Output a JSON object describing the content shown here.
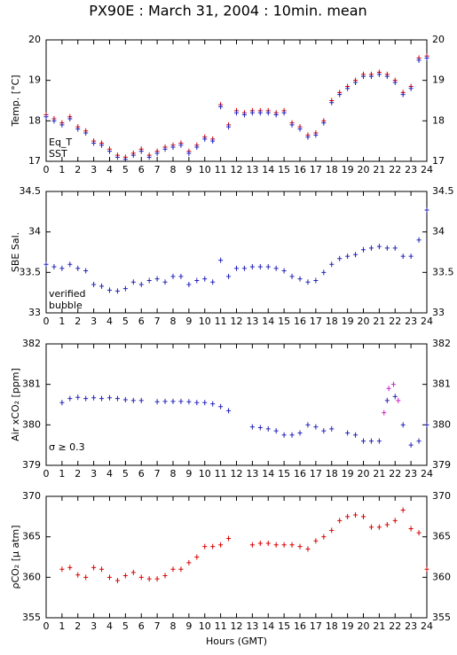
{
  "chart_data": [
    {
      "type": "scatter",
      "title": "PX90E : March 31, 2004 : 10min. mean",
      "ylabel": "Temp. [°C]",
      "xlim": [
        0,
        24
      ],
      "xticks": [
        0,
        1,
        2,
        3,
        4,
        5,
        6,
        7,
        8,
        9,
        10,
        11,
        12,
        13,
        14,
        15,
        16,
        17,
        18,
        19,
        20,
        21,
        22,
        23,
        24
      ],
      "ylim": [
        17,
        20
      ],
      "yticks": [
        17,
        18,
        19,
        20
      ],
      "series": [
        {
          "name": "Eq_T",
          "color": "#dd0000",
          "x": [
            0,
            0.5,
            1,
            1.5,
            2,
            2.5,
            3,
            3.5,
            4,
            4.5,
            5,
            5.5,
            6,
            6.5,
            7,
            7.5,
            8,
            8.5,
            9,
            9.5,
            10,
            10.5,
            11,
            11.5,
            12,
            12.5,
            13,
            13.5,
            14,
            14.5,
            15,
            15.5,
            16,
            16.5,
            17,
            17.5,
            18,
            18.5,
            19,
            19.5,
            20,
            20.5,
            21,
            21.5,
            22,
            22.5,
            23,
            23.5,
            24
          ],
          "values": [
            18.15,
            18.05,
            17.95,
            18.1,
            17.85,
            17.75,
            17.5,
            17.45,
            17.3,
            17.15,
            17.1,
            17.2,
            17.3,
            17.15,
            17.25,
            17.35,
            17.4,
            17.45,
            17.25,
            17.4,
            17.6,
            17.55,
            18.4,
            17.9,
            18.25,
            18.2,
            18.25,
            18.25,
            18.25,
            18.2,
            18.25,
            17.95,
            17.85,
            17.65,
            17.7,
            18.0,
            18.5,
            18.7,
            18.85,
            19.0,
            19.15,
            19.15,
            19.2,
            19.15,
            19.0,
            18.7,
            18.85,
            19.55,
            19.6
          ]
        },
        {
          "name": "SST",
          "color": "#2222bb",
          "x": [
            0,
            0.5,
            1,
            1.5,
            2,
            2.5,
            3,
            3.5,
            4,
            4.5,
            5,
            5.5,
            6,
            6.5,
            7,
            7.5,
            8,
            8.5,
            9,
            9.5,
            10,
            10.5,
            11,
            11.5,
            12,
            12.5,
            13,
            13.5,
            14,
            14.5,
            15,
            15.5,
            16,
            16.5,
            17,
            17.5,
            18,
            18.5,
            19,
            19.5,
            20,
            20.5,
            21,
            21.5,
            22,
            22.5,
            23,
            23.5,
            24
          ],
          "values": [
            18.1,
            18.0,
            17.9,
            18.05,
            17.8,
            17.7,
            17.45,
            17.4,
            17.25,
            17.1,
            17.05,
            17.15,
            17.25,
            17.1,
            17.2,
            17.3,
            17.35,
            17.4,
            17.2,
            17.35,
            17.55,
            17.5,
            18.35,
            17.85,
            18.2,
            18.15,
            18.2,
            18.2,
            18.2,
            18.15,
            18.2,
            17.9,
            17.8,
            17.6,
            17.65,
            17.95,
            18.45,
            18.65,
            18.8,
            18.95,
            19.1,
            19.1,
            19.15,
            19.1,
            18.95,
            18.65,
            18.8,
            19.5,
            19.55
          ]
        }
      ]
    },
    {
      "type": "scatter",
      "ylabel": "SBE Sal.",
      "xlim": [
        0,
        24
      ],
      "xticks": [
        0,
        1,
        2,
        3,
        4,
        5,
        6,
        7,
        8,
        9,
        10,
        11,
        12,
        13,
        14,
        15,
        16,
        17,
        18,
        19,
        20,
        21,
        22,
        23,
        24
      ],
      "ylim": [
        33,
        34.5
      ],
      "yticks": [
        33,
        33.5,
        34,
        34.5
      ],
      "series": [
        {
          "name": "verified",
          "color": "#2222bb",
          "x": [
            0,
            0.5,
            1,
            1.5,
            2,
            2.5,
            3,
            3.5,
            4,
            4.5,
            5,
            5.5,
            6,
            6.5,
            7,
            7.5,
            8,
            8.5,
            9,
            9.5,
            10,
            10.5,
            11,
            11.5,
            12,
            12.5,
            13,
            13.5,
            14,
            14.5,
            15,
            15.5,
            16,
            16.5,
            17,
            17.5,
            18,
            18.5,
            19,
            19.5,
            20,
            20.5,
            21,
            21.5,
            22,
            22.5,
            23,
            23.5,
            24
          ],
          "values": [
            33.6,
            33.57,
            33.55,
            33.6,
            33.55,
            33.52,
            33.35,
            33.33,
            33.28,
            33.27,
            33.3,
            33.38,
            33.35,
            33.4,
            33.42,
            33.38,
            33.45,
            33.45,
            33.35,
            33.4,
            33.42,
            33.38,
            33.65,
            33.45,
            33.55,
            33.55,
            33.57,
            33.57,
            33.57,
            33.55,
            33.52,
            33.45,
            33.42,
            33.38,
            33.4,
            33.5,
            33.6,
            33.67,
            33.7,
            33.72,
            33.78,
            33.8,
            33.82,
            33.8,
            33.8,
            33.7,
            33.7,
            33.9,
            34.27
          ]
        },
        {
          "name": "bubble",
          "color": "#cc22cc",
          "x": [],
          "values": []
        }
      ]
    },
    {
      "type": "scatter",
      "ylabel": "Air xCO₂ [ppm]",
      "annotation": "σ ≥ 0.3",
      "annotation_color": "#cc22cc",
      "xlim": [
        0,
        24
      ],
      "xticks": [
        0,
        1,
        2,
        3,
        4,
        5,
        6,
        7,
        8,
        9,
        10,
        11,
        12,
        13,
        14,
        15,
        16,
        17,
        18,
        19,
        20,
        21,
        22,
        23,
        24
      ],
      "ylim": [
        379,
        382
      ],
      "yticks": [
        379,
        380,
        381,
        382
      ],
      "series": [
        {
          "color": "#2222bb",
          "x": [
            1,
            1.5,
            2,
            2.5,
            3,
            3.5,
            4,
            4.5,
            5,
            5.5,
            6,
            6.5,
            7,
            7.5,
            8,
            8.5,
            9,
            9.5,
            10,
            10.5,
            11,
            11.5,
            12,
            12.5,
            13,
            13.5,
            14,
            14.5,
            15,
            15.5,
            16,
            16.5,
            17,
            17.5,
            18,
            18.5,
            19,
            19.5,
            20,
            20.5,
            21,
            21.5,
            22,
            22.5,
            23,
            23.5,
            24
          ],
          "values": [
            380.55,
            380.65,
            380.68,
            380.65,
            380.67,
            380.65,
            380.67,
            380.65,
            380.62,
            380.6,
            380.6,
            null,
            380.57,
            380.58,
            380.58,
            380.58,
            380.57,
            380.55,
            380.55,
            380.52,
            380.45,
            380.35,
            null,
            null,
            379.95,
            379.93,
            379.9,
            379.85,
            379.75,
            379.75,
            379.8,
            380.0,
            379.95,
            379.85,
            379.9,
            null,
            379.8,
            379.75,
            379.6,
            379.6,
            379.6,
            380.6,
            380.7,
            380.0,
            379.5,
            379.6,
            380.0
          ]
        },
        {
          "color": "#cc22cc",
          "x": [
            21.3,
            21.6,
            21.9,
            22.2
          ],
          "values": [
            380.3,
            380.9,
            381.0,
            380.6
          ]
        }
      ]
    },
    {
      "type": "scatter",
      "ylabel": "ρCO₂ [μ atm]",
      "xlabel": "Hours (GMT)",
      "xlim": [
        0,
        24
      ],
      "xticks": [
        0,
        1,
        2,
        3,
        4,
        5,
        6,
        7,
        8,
        9,
        10,
        11,
        12,
        13,
        14,
        15,
        16,
        17,
        18,
        19,
        20,
        21,
        22,
        23,
        24
      ],
      "ylim": [
        355,
        370
      ],
      "yticks": [
        355,
        360,
        365,
        370
      ],
      "series": [
        {
          "color": "#dd0000",
          "x": [
            1,
            1.5,
            2,
            2.5,
            3,
            3.5,
            4,
            4.5,
            5,
            5.5,
            6,
            6.5,
            7,
            7.5,
            8,
            8.5,
            9,
            9.5,
            10,
            10.5,
            11,
            11.5,
            12,
            12.5,
            13,
            13.5,
            14,
            14.5,
            15,
            15.5,
            16,
            16.5,
            17,
            17.5,
            18,
            18.5,
            19,
            19.5,
            20,
            20.5,
            21,
            21.5,
            22,
            22.5,
            23,
            23.5,
            24
          ],
          "values": [
            361,
            361.2,
            360.3,
            360,
            361.2,
            361,
            360,
            359.6,
            360.2,
            360.6,
            360,
            359.8,
            359.8,
            360.2,
            361,
            361,
            361.8,
            362.5,
            363.8,
            363.8,
            364,
            364.8,
            null,
            null,
            364,
            364.2,
            364.2,
            364,
            364,
            364,
            363.8,
            363.5,
            364.5,
            365,
            365.8,
            367,
            367.5,
            367.7,
            367.5,
            366.2,
            366.2,
            366.5,
            367,
            368.3,
            366,
            365.5,
            361
          ]
        }
      ]
    }
  ]
}
